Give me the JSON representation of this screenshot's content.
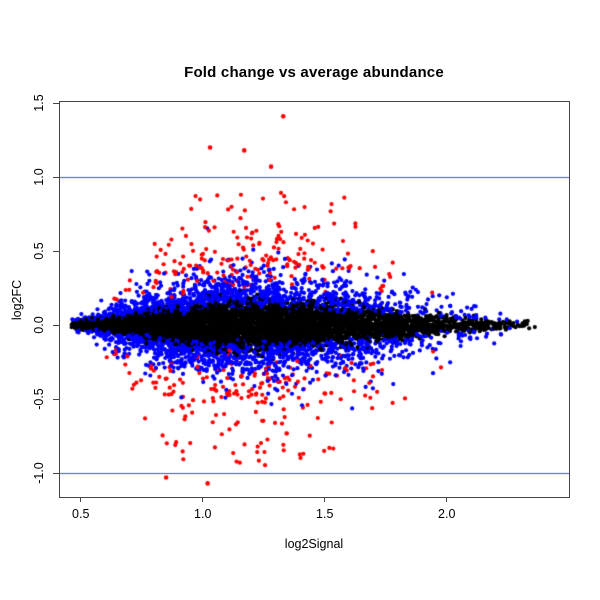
{
  "chart_data": {
    "type": "scatter",
    "title": "Fold change vs average abundance",
    "xlabel": "log2Signal",
    "ylabel": "log2FC",
    "xlim": [
      0.415,
      2.501
    ],
    "ylim": [
      -1.162,
      1.507
    ],
    "x_ticks": [
      0.5,
      1.0,
      1.5,
      2.0
    ],
    "x_tick_labels": [
      "0.5",
      "1.0",
      "1.5",
      "2.0"
    ],
    "y_ticks": [
      -1.0,
      -0.5,
      0.0,
      0.5,
      1.0,
      1.5
    ],
    "y_tick_labels": [
      "-1.0",
      "-0.5",
      "0.0",
      "0.5",
      "1.0",
      "1.5"
    ],
    "grid": false,
    "legend": false,
    "background": "#ffffff",
    "hlines": {
      "values": [
        1.0,
        -1.0
      ],
      "color": "#0000ff",
      "alpha": 0.72,
      "width": 1
    },
    "point_colors": {
      "not_significant": "#000000",
      "moderate": "#0000ff",
      "significant": "#ff0000"
    },
    "point_radius": 2.1,
    "generator": {
      "seed": 7,
      "n_points": 9000,
      "x_min": 0.46,
      "x_max": 2.46,
      "x_beta_a": 1.6,
      "x_beta_b": 3.0,
      "peak_x": 1.15,
      "sigma_left": 0.3,
      "sigma_right": 0.55,
      "amplitude": 0.95,
      "sigma_components": [
        [
          0.68,
          0.13
        ],
        [
          0.25,
          0.28
        ],
        [
          0.07,
          0.5
        ]
      ],
      "y_cap": 0.97,
      "red_threshold_base": 0.38,
      "red_env_power": 0.35,
      "blue_threshold_base": 0.15,
      "blue_env_power": 0.75,
      "threshold_jitter": 0.26
    },
    "outliers": [
      {
        "x": 1.33,
        "y": 1.41,
        "color": "significant"
      },
      {
        "x": 1.03,
        "y": 1.2,
        "color": "significant"
      },
      {
        "x": 1.17,
        "y": 1.18,
        "color": "significant"
      },
      {
        "x": 1.28,
        "y": 1.07,
        "color": "significant"
      },
      {
        "x": 0.85,
        "y": -1.03,
        "color": "significant"
      },
      {
        "x": 1.02,
        "y": -1.07,
        "color": "significant"
      }
    ]
  }
}
